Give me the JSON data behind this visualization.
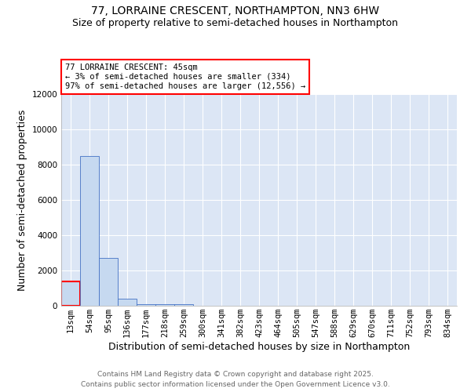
{
  "title_line1": "77, LORRAINE CRESCENT, NORTHAMPTON, NN3 6HW",
  "title_line2": "Size of property relative to semi-detached houses in Northampton",
  "xlabel": "Distribution of semi-detached houses by size in Northampton",
  "ylabel": "Number of semi-detached properties",
  "categories": [
    "13sqm",
    "54sqm",
    "95sqm",
    "136sqm",
    "177sqm",
    "218sqm",
    "259sqm",
    "300sqm",
    "341sqm",
    "382sqm",
    "423sqm",
    "464sqm",
    "505sqm",
    "547sqm",
    "588sqm",
    "629sqm",
    "670sqm",
    "711sqm",
    "752sqm",
    "793sqm",
    "834sqm"
  ],
  "values": [
    1400,
    8500,
    2700,
    380,
    110,
    80,
    80,
    0,
    0,
    0,
    0,
    0,
    0,
    0,
    0,
    0,
    0,
    0,
    0,
    0,
    0
  ],
  "bar_color": "#c6d9f0",
  "bar_edge_color": "#4472c4",
  "highlight_bar_index": 0,
  "highlight_edge_color": "#ff0000",
  "ylim": [
    0,
    12000
  ],
  "yticks": [
    0,
    2000,
    4000,
    6000,
    8000,
    10000,
    12000
  ],
  "annotation_title": "77 LORRAINE CRESCENT: 45sqm",
  "annotation_line1": "← 3% of semi-detached houses are smaller (334)",
  "annotation_line2": "97% of semi-detached houses are larger (12,556) →",
  "footer_line1": "Contains HM Land Registry data © Crown copyright and database right 2025.",
  "footer_line2": "Contains public sector information licensed under the Open Government Licence v3.0.",
  "bg_color": "#ffffff",
  "plot_bg_color": "#dce6f5",
  "grid_color": "#ffffff",
  "title_fontsize": 10,
  "subtitle_fontsize": 9,
  "axis_label_fontsize": 9,
  "tick_fontsize": 7.5,
  "annotation_fontsize": 7.5,
  "footer_fontsize": 6.5
}
